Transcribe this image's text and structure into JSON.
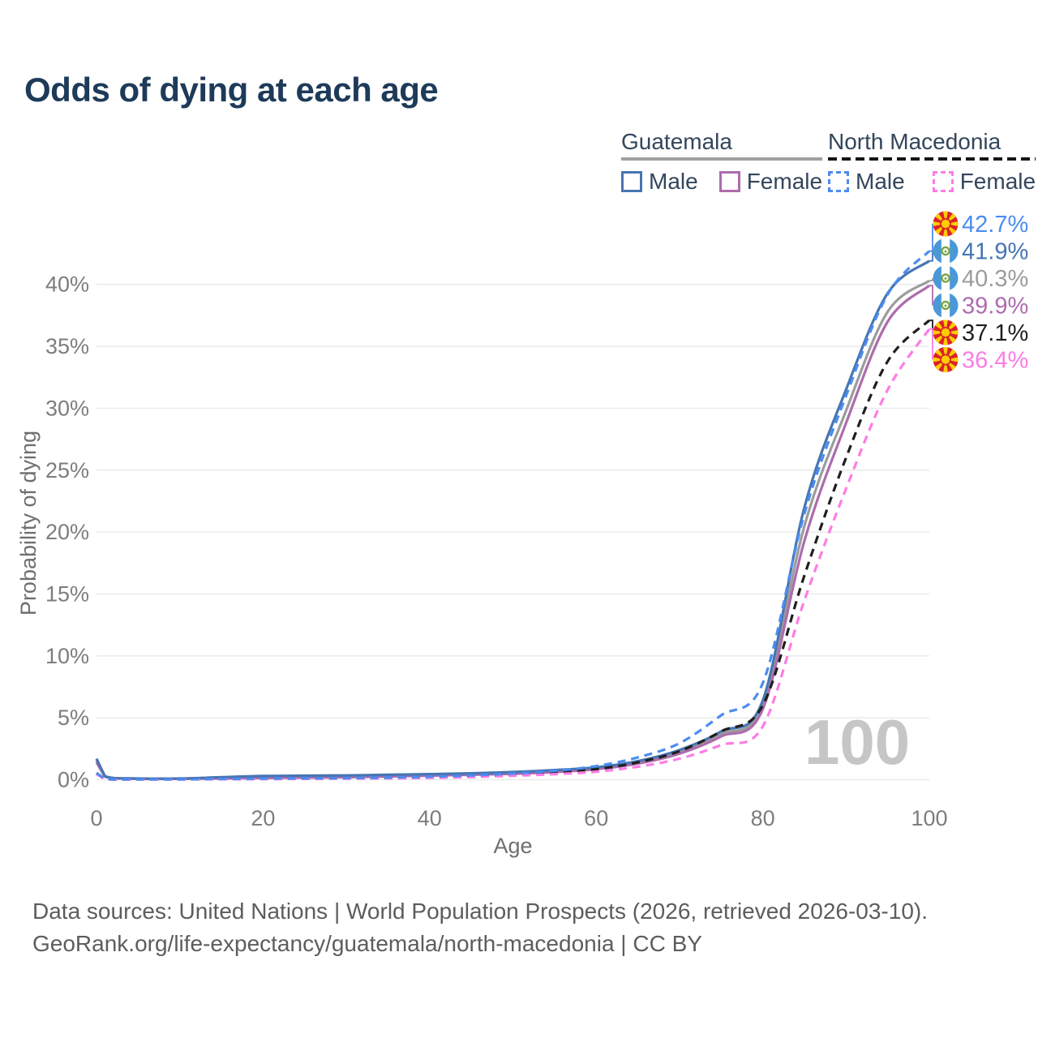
{
  "title": "Odds of dying at each age",
  "legend": {
    "groups": [
      {
        "name": "Guatemala",
        "line_style": "solid",
        "underline_color": "#a0a0a0",
        "items": [
          {
            "label": "Male",
            "color": "#4775b2"
          },
          {
            "label": "Female",
            "color": "#ad6cad"
          }
        ]
      },
      {
        "name": "North Macedonia",
        "line_style": "dashed",
        "underline_color": "#161616",
        "items": [
          {
            "label": "Male",
            "color": "#4b8cf0"
          },
          {
            "label": "Female",
            "color": "#fd7ce4"
          }
        ]
      }
    ]
  },
  "watermark": "100",
  "footer": {
    "line1": "Data sources: United Nations | World Population Prospects (2026, retrieved 2026-03-10).",
    "line2": "GeoRank.org/life-expectancy/guatemala/north-macedonia | CC BY"
  },
  "chart_data": {
    "type": "line",
    "xlabel": "Age",
    "ylabel": "Probability of dying",
    "x_ticks": [
      0,
      20,
      40,
      60,
      80,
      100
    ],
    "y_ticks_percent": [
      0,
      5,
      10,
      15,
      20,
      25,
      30,
      35,
      40
    ],
    "xlim": [
      0,
      100
    ],
    "ylim_percent": [
      0,
      44
    ],
    "grid": true,
    "legend_position": "top-right",
    "ages": [
      0,
      1,
      5,
      10,
      15,
      20,
      25,
      30,
      35,
      40,
      45,
      50,
      55,
      60,
      65,
      70,
      75,
      80,
      85,
      90,
      95,
      100
    ],
    "draw_order": [
      "gt-both",
      "gt-female",
      "gt-male",
      "nm-both",
      "nm-female",
      "nm-male"
    ],
    "series": [
      {
        "id": "gt-male",
        "country": "Guatemala",
        "sex": "Male",
        "color": "#4775b2",
        "dash": "solid",
        "flag": "mk-none-gt",
        "end_label": "41.9%",
        "end_value": 41.9,
        "values": [
          1.7,
          0.3,
          0.1,
          0.1,
          0.2,
          0.3,
          0.33,
          0.35,
          0.4,
          0.45,
          0.52,
          0.62,
          0.78,
          1.0,
          1.5,
          2.4,
          3.9,
          6.4,
          22.0,
          31.5,
          39.3,
          41.9
        ]
      },
      {
        "id": "gt-female",
        "country": "Guatemala",
        "sex": "Female",
        "color": "#ad6cad",
        "dash": "solid",
        "flag": "mk-none-gt",
        "end_label": "39.9%",
        "end_value": 39.9,
        "values": [
          1.4,
          0.25,
          0.08,
          0.07,
          0.1,
          0.14,
          0.17,
          0.2,
          0.26,
          0.33,
          0.4,
          0.48,
          0.62,
          0.85,
          1.3,
          2.1,
          3.5,
          5.7,
          19.3,
          28.8,
          37.0,
          39.9
        ]
      },
      {
        "id": "gt-both",
        "country": "Guatemala",
        "sex": "Both sexes",
        "color": "#9c9c9c",
        "dash": "solid",
        "flag": "mk-none-gt",
        "end_label": "40.3%",
        "end_value": 40.3,
        "values": [
          1.55,
          0.28,
          0.09,
          0.09,
          0.15,
          0.22,
          0.25,
          0.28,
          0.33,
          0.4,
          0.46,
          0.55,
          0.7,
          0.92,
          1.4,
          2.25,
          3.7,
          6.0,
          20.5,
          29.8,
          37.8,
          40.3
        ]
      },
      {
        "id": "nm-male",
        "country": "North Macedonia",
        "sex": "Male",
        "color": "#4b8cf0",
        "dash": "dashed",
        "flag": "mk-flag",
        "end_label": "42.7%",
        "end_value": 42.7,
        "values": [
          0.55,
          0.06,
          0.03,
          0.03,
          0.06,
          0.09,
          0.11,
          0.13,
          0.17,
          0.24,
          0.35,
          0.5,
          0.72,
          1.1,
          1.8,
          2.95,
          5.2,
          7.8,
          21.5,
          31.0,
          39.2,
          42.7
        ]
      },
      {
        "id": "nm-female",
        "country": "North Macedonia",
        "sex": "Female",
        "color": "#fd7ce4",
        "dash": "dashed",
        "flag": "mk-flag",
        "end_label": "36.4%",
        "end_value": 36.4,
        "values": [
          0.45,
          0.05,
          0.02,
          0.02,
          0.04,
          0.05,
          0.07,
          0.09,
          0.11,
          0.15,
          0.22,
          0.32,
          0.45,
          0.65,
          1.05,
          1.7,
          2.8,
          4.3,
          14.5,
          23.5,
          31.5,
          36.4
        ]
      },
      {
        "id": "nm-both",
        "country": "North Macedonia",
        "sex": "Both sexes",
        "color": "#1f1f1f",
        "dash": "dashed",
        "flag": "mk-flag",
        "end_label": "37.1%",
        "end_value": 37.1,
        "values": [
          0.5,
          0.06,
          0.03,
          0.03,
          0.05,
          0.07,
          0.09,
          0.11,
          0.14,
          0.2,
          0.29,
          0.41,
          0.58,
          0.85,
          1.4,
          2.3,
          3.9,
          6.0,
          16.5,
          26.0,
          33.8,
          37.1
        ]
      }
    ]
  }
}
